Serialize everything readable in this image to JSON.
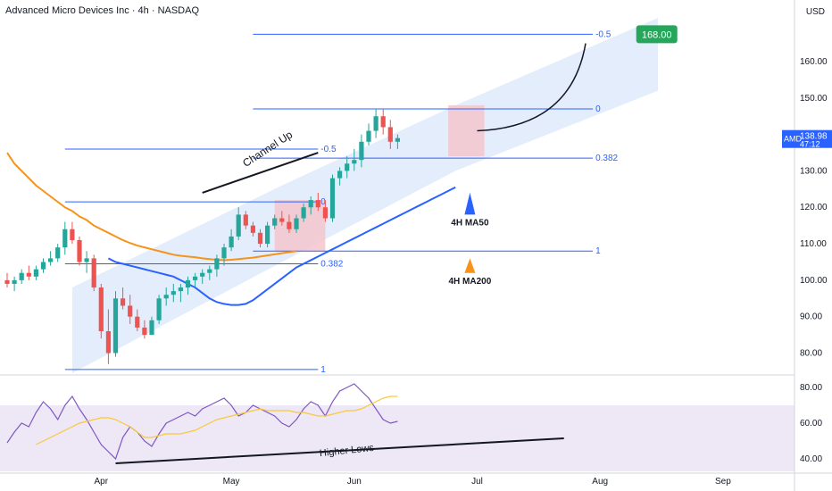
{
  "header": {
    "title": "Advanced Micro Devices Inc · 4h · NASDAQ",
    "currency": "USD"
  },
  "colors": {
    "up": "#26a69a",
    "down": "#ef5350",
    "ma50": "#2962ff",
    "ma200": "#f7931a",
    "fib": "#2962ff",
    "channel": "#dbe7fb",
    "box": "#f5c5cc",
    "rsi": "#7e57c2",
    "rsi_ma": "#f9c93a",
    "rsi_band": "#ede7f6",
    "target": "#26a65b",
    "price_tag": "#2962ff"
  },
  "price_axis": {
    "ticks": [
      {
        "v": 80,
        "t": "80.00"
      },
      {
        "v": 90,
        "t": "90.00"
      },
      {
        "v": 100,
        "t": "100.00"
      },
      {
        "v": 110,
        "t": "110.00"
      },
      {
        "v": 120,
        "t": "120.00"
      },
      {
        "v": 130,
        "t": "130.00"
      },
      {
        "v": 140,
        "t": "140.00"
      },
      {
        "v": 150,
        "t": "150.00"
      },
      {
        "v": 160,
        "t": "160.00"
      }
    ],
    "current": {
      "symbol": "AMD",
      "price": "138.98",
      "countdown": "47:12"
    }
  },
  "rsi_axis": {
    "ticks": [
      {
        "v": 40,
        "t": "40.00"
      },
      {
        "v": 60,
        "t": "60.00"
      },
      {
        "v": 80,
        "t": "80.00"
      }
    ]
  },
  "time_axis": [
    {
      "i": 13,
      "t": "Apr"
    },
    {
      "i": 31,
      "t": "May"
    },
    {
      "i": 48,
      "t": "Jun"
    },
    {
      "i": 65,
      "t": "Jul"
    },
    {
      "i": 82,
      "t": "Aug"
    },
    {
      "i": 99,
      "t": "Sep"
    }
  ],
  "chart_data": {
    "type": "candlestick",
    "timeframe": "4h",
    "ylim": [
      74,
      172
    ],
    "rsi_ylim": [
      33,
      86
    ],
    "candles": [
      [
        100,
        102,
        98,
        99
      ],
      [
        99,
        101,
        97,
        100
      ],
      [
        100,
        103,
        99,
        102
      ],
      [
        102,
        104,
        100,
        101
      ],
      [
        101,
        104,
        100,
        103
      ],
      [
        103,
        106,
        102,
        105
      ],
      [
        105,
        108,
        104,
        106
      ],
      [
        106,
        110,
        105,
        109
      ],
      [
        109,
        116,
        107,
        114
      ],
      [
        114,
        116,
        110,
        111
      ],
      [
        111,
        112,
        104,
        105
      ],
      [
        105,
        108,
        102,
        106
      ],
      [
        106,
        107,
        97,
        98
      ],
      [
        98,
        99,
        84,
        86
      ],
      [
        86,
        92,
        77,
        80
      ],
      [
        80,
        97,
        79,
        95
      ],
      [
        95,
        98,
        92,
        93
      ],
      [
        93,
        96,
        88,
        90
      ],
      [
        90,
        92,
        86,
        87
      ],
      [
        87,
        89,
        84,
        85
      ],
      [
        85,
        90,
        85,
        89
      ],
      [
        89,
        96,
        88,
        95
      ],
      [
        95,
        98,
        93,
        96
      ],
      [
        96,
        99,
        94,
        97
      ],
      [
        97,
        99,
        94,
        98
      ],
      [
        98,
        101,
        96,
        100
      ],
      [
        100,
        102,
        98,
        101
      ],
      [
        101,
        103,
        99,
        102
      ],
      [
        102,
        104,
        100,
        103
      ],
      [
        103,
        107,
        101,
        106
      ],
      [
        106,
        110,
        104,
        109
      ],
      [
        109,
        114,
        108,
        112
      ],
      [
        112,
        120,
        111,
        118
      ],
      [
        118,
        119,
        114,
        115
      ],
      [
        115,
        116,
        112,
        113
      ],
      [
        113,
        114,
        109,
        110
      ],
      [
        110,
        116,
        109,
        115
      ],
      [
        115,
        118,
        114,
        117
      ],
      [
        117,
        119,
        115,
        116
      ],
      [
        116,
        118,
        113,
        114
      ],
      [
        114,
        118,
        113,
        117
      ],
      [
        117,
        121,
        116,
        120
      ],
      [
        120,
        123,
        118,
        122
      ],
      [
        122,
        124,
        119,
        120
      ],
      [
        120,
        122,
        116,
        117
      ],
      [
        117,
        129,
        116,
        128
      ],
      [
        128,
        131,
        126,
        130
      ],
      [
        130,
        134,
        128,
        132
      ],
      [
        132,
        136,
        130,
        133
      ],
      [
        133,
        140,
        131,
        138
      ],
      [
        138,
        143,
        137,
        141
      ],
      [
        141,
        147,
        139,
        145
      ],
      [
        145,
        147,
        140,
        142
      ],
      [
        142,
        144,
        136,
        138
      ],
      [
        138,
        140,
        136,
        139
      ]
    ],
    "ma50": [
      106,
      105,
      104.5,
      104,
      103.5,
      103,
      102.5,
      102,
      101.5,
      101,
      100,
      99,
      98,
      96.5,
      95,
      94,
      93.5,
      93.2,
      93.2,
      93.5,
      94.5,
      96,
      97.5,
      99,
      100.5,
      102,
      103.5,
      104.5,
      105.5,
      106.5,
      107.5,
      108.5,
      109.5,
      110.5,
      111.5,
      112.5,
      113.5,
      114.5,
      115.5,
      116.5,
      117.5,
      118.5,
      119.5,
      120.5,
      121.5,
      122.5,
      123.5,
      124.5,
      125.5
    ],
    "ma200": [
      135,
      132,
      130,
      128,
      126,
      124.5,
      123,
      121.5,
      120,
      119,
      117.5,
      116.5,
      115,
      114,
      113,
      112,
      111,
      110.2,
      109.5,
      109,
      108.5,
      108,
      107.5,
      107,
      106.7,
      106.5,
      106.3,
      106,
      105.8,
      105.6,
      105.5,
      105.6,
      105.8,
      106,
      106.2,
      106.5,
      106.8,
      107.1,
      107.4,
      107.7,
      108
    ],
    "rsi": [
      49,
      55,
      60,
      58,
      66,
      72,
      68,
      62,
      70,
      75,
      68,
      62,
      55,
      48,
      44,
      40,
      52,
      58,
      55,
      50,
      47,
      54,
      60,
      62,
      64,
      66,
      64,
      68,
      70,
      72,
      74,
      70,
      64,
      66,
      70,
      68,
      66,
      64,
      60,
      58,
      62,
      68,
      72,
      70,
      64,
      72,
      78,
      80,
      82,
      78,
      74,
      68,
      62,
      60,
      61
    ],
    "rsi_ma": [
      48,
      50,
      52,
      54,
      56,
      58,
      60,
      61,
      62,
      63,
      63,
      62,
      60,
      58,
      55,
      52,
      52,
      53,
      54,
      54,
      54,
      55,
      56,
      58,
      60,
      62,
      63,
      64,
      65,
      66,
      67,
      68,
      67,
      67,
      67,
      67,
      66,
      66,
      65,
      64,
      64,
      65,
      66,
      67,
      67,
      68,
      70,
      72,
      74,
      75,
      75
    ],
    "channel": {
      "lower": [
        [
          9,
          74.5
        ],
        [
          38,
          105
        ],
        [
          62,
          130
        ],
        [
          90,
          152
        ]
      ],
      "upper": [
        [
          9,
          98
        ],
        [
          38,
          126
        ],
        [
          62,
          148
        ],
        [
          90,
          172
        ]
      ]
    },
    "fib_1": {
      "levels": [
        {
          "label": "0",
          "value": 121.5
        },
        {
          "label": "0.382",
          "value": 104.5
        },
        {
          "label": "1",
          "value": 75.5
        },
        {
          "label": "-0.5",
          "value": 136
        }
      ],
      "x_range": [
        8,
        43
      ]
    },
    "fib_2": {
      "levels": [
        {
          "label": "0",
          "value": 147
        },
        {
          "label": "0.382",
          "value": 133.5
        },
        {
          "label": "1",
          "value": 108
        },
        {
          "label": "-0.5",
          "value": 167.5
        }
      ],
      "x_range": [
        34,
        81
      ]
    },
    "boxes": [
      [
        37,
        44,
        108,
        122
      ],
      [
        61,
        66,
        134,
        148
      ]
    ],
    "annotations": {
      "channel_label": "Channel Up",
      "ma50_label": "4H MA50",
      "ma200_label": "4H MA200",
      "target": "168.00",
      "rsi_label": "Higher Lows"
    },
    "rsi_trendline": [
      [
        15,
        37.5
      ],
      [
        77,
        51.5
      ]
    ]
  }
}
